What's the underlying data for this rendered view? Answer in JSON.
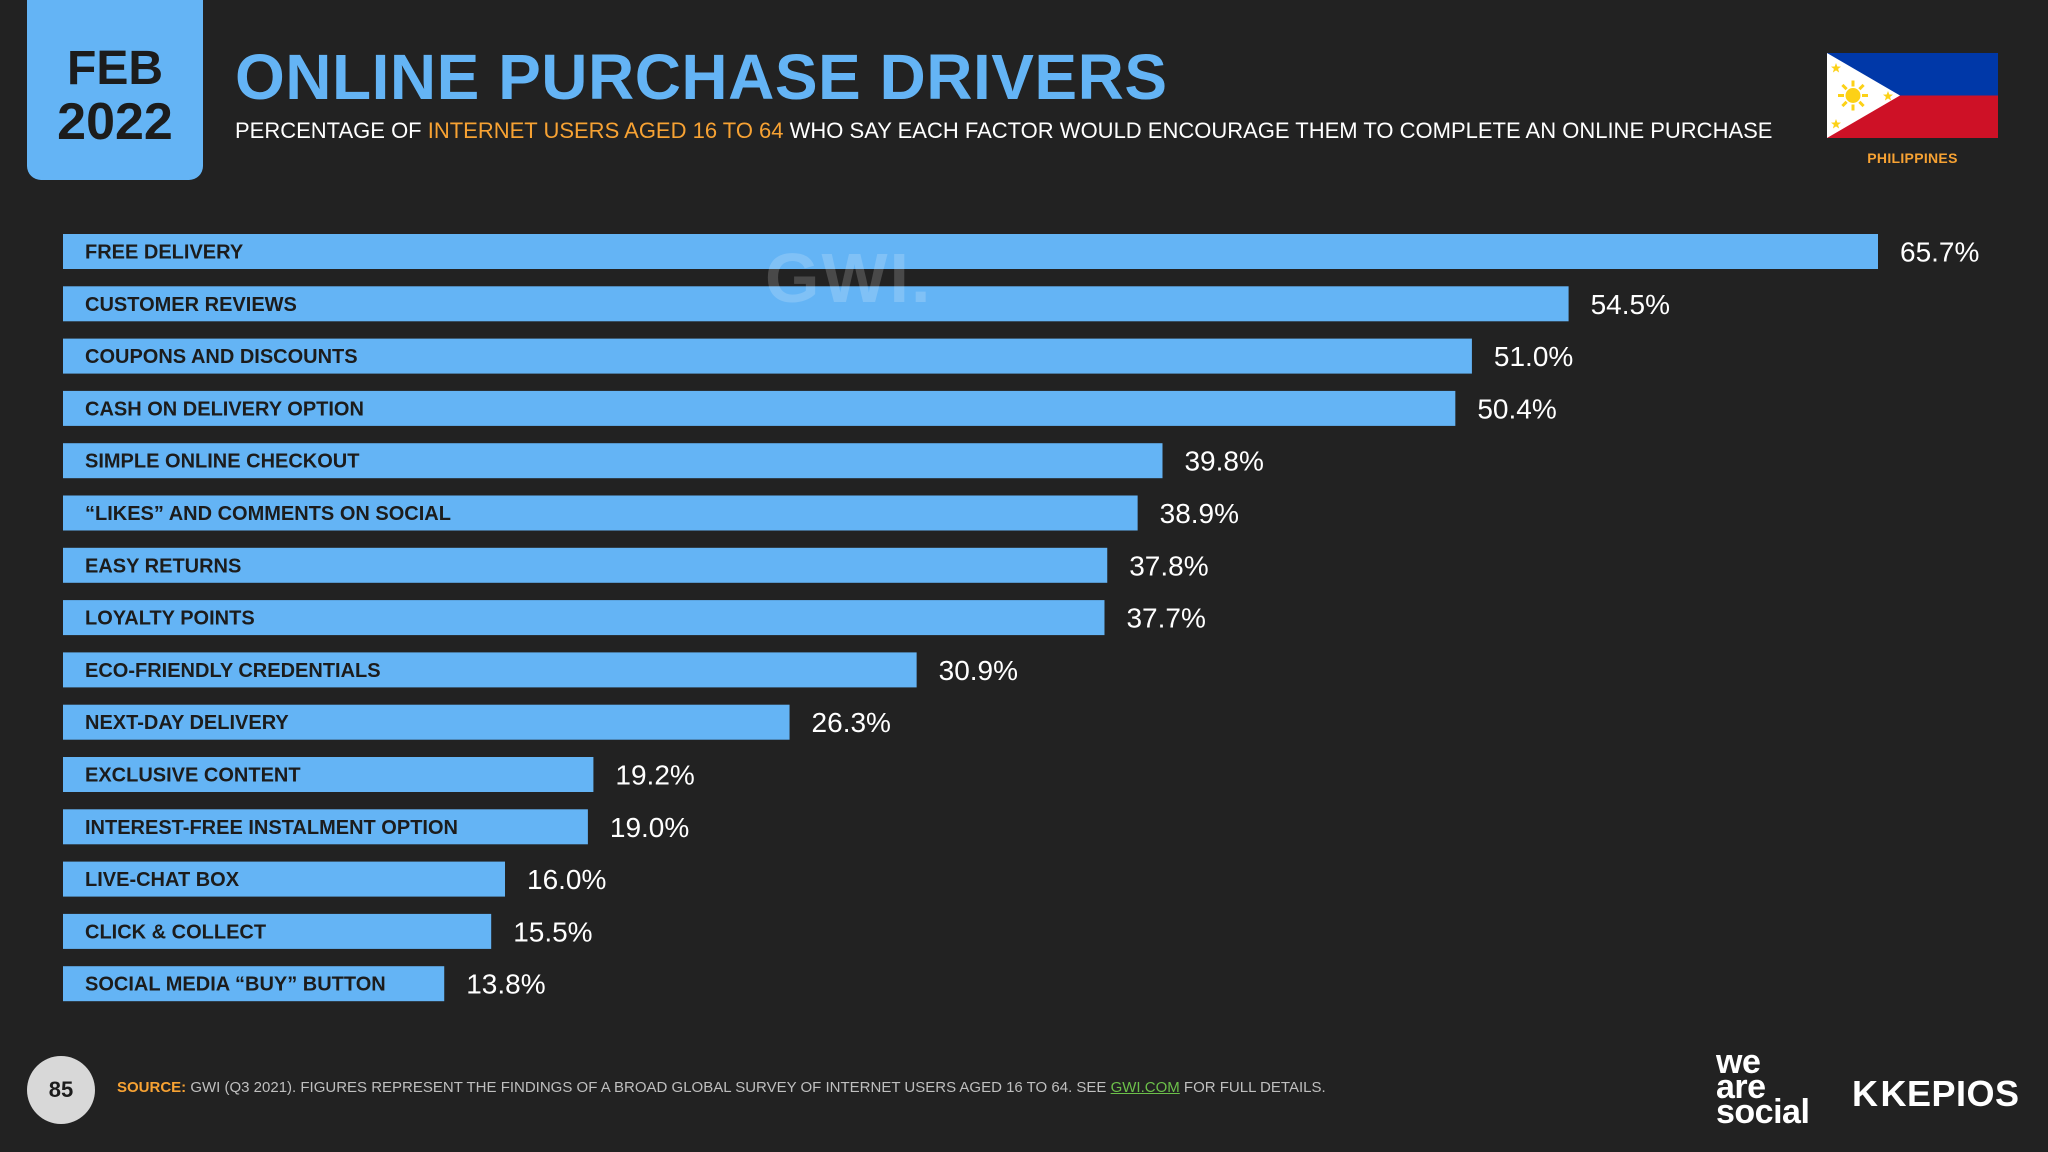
{
  "header": {
    "month": "FEB",
    "year": "2022",
    "title": "ONLINE PURCHASE DRIVERS",
    "subtitle_pre": "PERCENTAGE OF ",
    "subtitle_highlight": "INTERNET USERS AGED 16 TO 64",
    "subtitle_post": " WHO SAY EACH FACTOR WOULD ENCOURAGE THEM TO COMPLETE AN ONLINE PURCHASE",
    "country": "PHILIPPINES"
  },
  "watermark": "GWI.",
  "colors": {
    "background": "#222222",
    "accent_blue": "#64b4f5",
    "accent_orange": "#f7a233",
    "bar_text": "#1c1c1c",
    "flag_blue": "#0038a8",
    "flag_red": "#ce1126",
    "flag_white": "#ffffff",
    "flag_yellow": "#fcd116"
  },
  "chart_data": {
    "type": "bar",
    "orientation": "horizontal",
    "title": "ONLINE PURCHASE DRIVERS",
    "xlabel": "",
    "ylabel": "",
    "xlim": [
      0,
      65.7
    ],
    "grid": false,
    "categories": [
      "FREE DELIVERY",
      "CUSTOMER REVIEWS",
      "COUPONS AND DISCOUNTS",
      "CASH ON DELIVERY OPTION",
      "SIMPLE ONLINE CHECKOUT",
      "“LIKES” AND COMMENTS ON SOCIAL",
      "EASY RETURNS",
      "LOYALTY POINTS",
      "ECO-FRIENDLY CREDENTIALS",
      "NEXT-DAY DELIVERY",
      "EXCLUSIVE CONTENT",
      "INTEREST-FREE INSTALMENT OPTION",
      "LIVE-CHAT BOX",
      "CLICK & COLLECT",
      "SOCIAL MEDIA “BUY” BUTTON"
    ],
    "values": [
      65.7,
      54.5,
      51.0,
      50.4,
      39.8,
      38.9,
      37.8,
      37.7,
      30.9,
      26.3,
      19.2,
      19.0,
      16.0,
      15.5,
      13.8
    ],
    "value_labels": [
      "65.7%",
      "54.5%",
      "51.0%",
      "50.4%",
      "39.8%",
      "38.9%",
      "37.8%",
      "37.7%",
      "30.9%",
      "26.3%",
      "19.2%",
      "19.0%",
      "16.0%",
      "15.5%",
      "13.8%"
    ],
    "unit": "%"
  },
  "footer": {
    "page_number": "85",
    "source_label": "SOURCE:",
    "source_text": " GWI (Q3 2021). FIGURES REPRESENT THE FINDINGS OF A BROAD GLOBAL SURVEY OF INTERNET USERS AGED 16 TO 64. SEE ",
    "source_link": "GWI.COM",
    "source_tail": " FOR FULL DETAILS.",
    "brand_line1": "we",
    "brand_line2": "are",
    "brand_line3": "social",
    "kepios_mark": "K",
    "kepios_name": "KEPIOS"
  }
}
